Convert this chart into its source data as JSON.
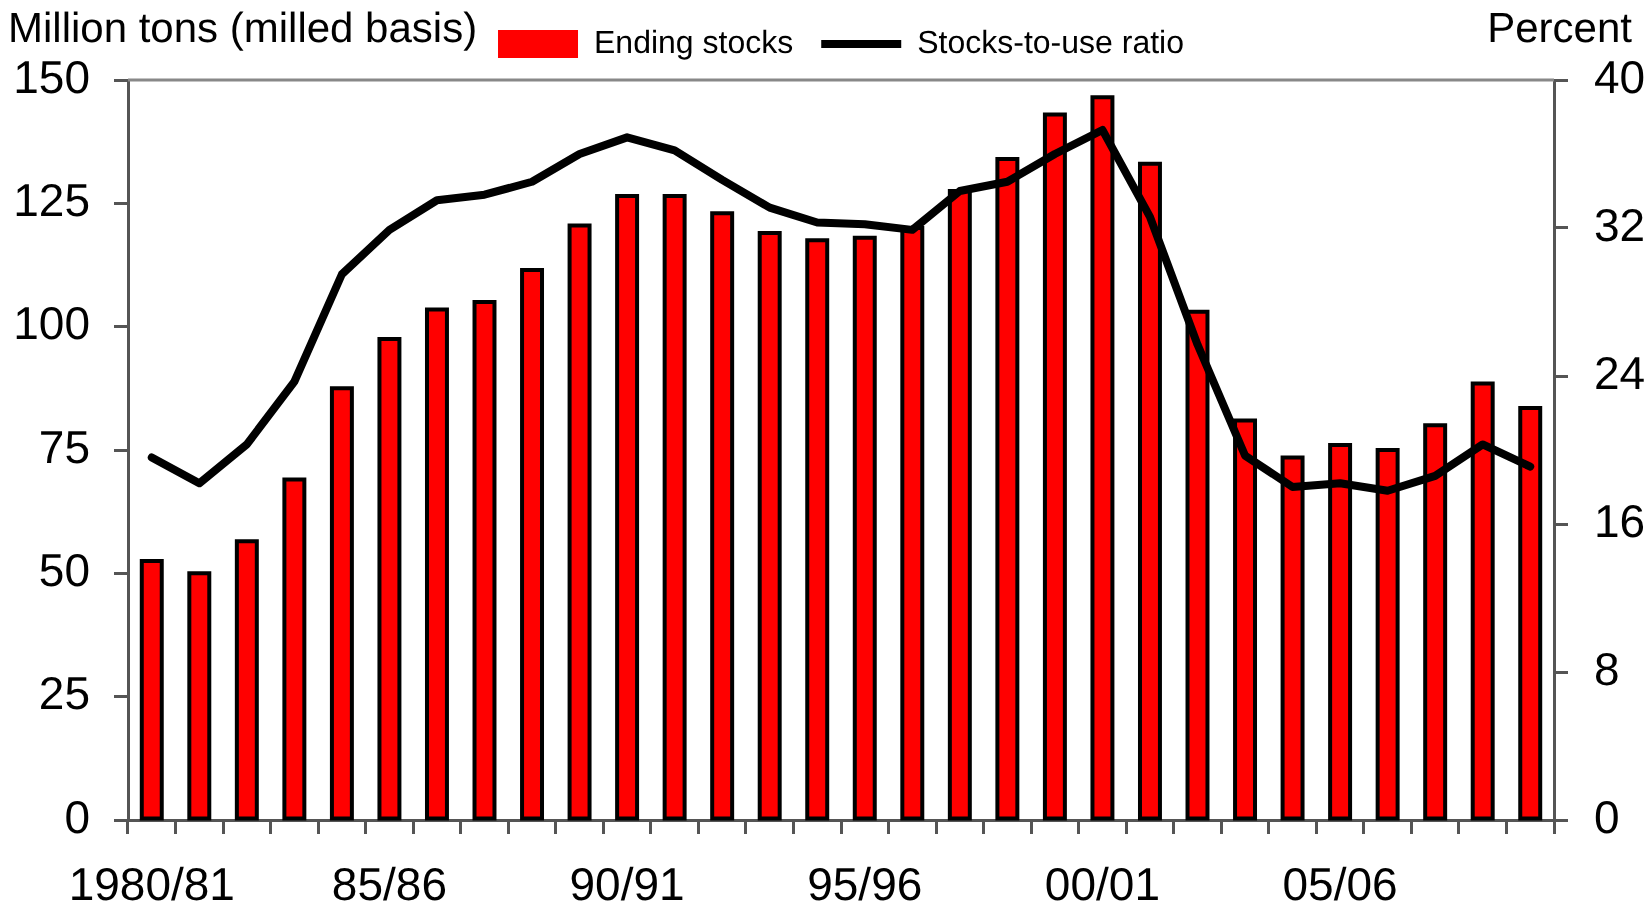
{
  "chart_data": {
    "type": "bar",
    "ylabel": "Million tons (milled basis)",
    "y2label": "Percent",
    "categories": [
      "1980/81",
      null,
      null,
      null,
      null,
      "85/86",
      null,
      null,
      null,
      null,
      "90/91",
      null,
      null,
      null,
      null,
      "95/96",
      null,
      null,
      null,
      null,
      "00/01",
      null,
      null,
      null,
      null,
      "05/06",
      null,
      null,
      null,
      null
    ],
    "series": [
      {
        "name": "Ending stocks",
        "color": "#ff0000",
        "values": [
          52.5,
          50,
          56.5,
          69,
          87.5,
          97.5,
          103.5,
          105,
          111.5,
          120.5,
          126.5,
          126.5,
          123,
          119,
          117.5,
          118,
          120,
          127.5,
          134,
          143,
          146.5,
          133,
          103,
          81,
          73.5,
          76,
          75,
          80,
          88.5,
          83.5
        ]
      },
      {
        "name": "Stocks-to-use ratio",
        "type": "line",
        "color": "#000000",
        "axis": "y2",
        "values": [
          19.6,
          18.2,
          20.3,
          23.7,
          29.5,
          31.9,
          33.5,
          33.8,
          34.5,
          36.0,
          36.9,
          36.2,
          34.6,
          33.1,
          32.3,
          32.2,
          31.9,
          34.0,
          34.5,
          36.0,
          37.3,
          32.6,
          25.7,
          19.7,
          18.0,
          18.2,
          17.8,
          18.6,
          20.3,
          19.1
        ]
      }
    ],
    "ylim": [
      0,
      150
    ],
    "yticks": [
      0,
      25,
      50,
      75,
      100,
      125,
      150
    ],
    "y2lim": [
      0,
      40
    ],
    "y2ticks": [
      0,
      8,
      16,
      24,
      32,
      40
    ],
    "legend": "top"
  }
}
